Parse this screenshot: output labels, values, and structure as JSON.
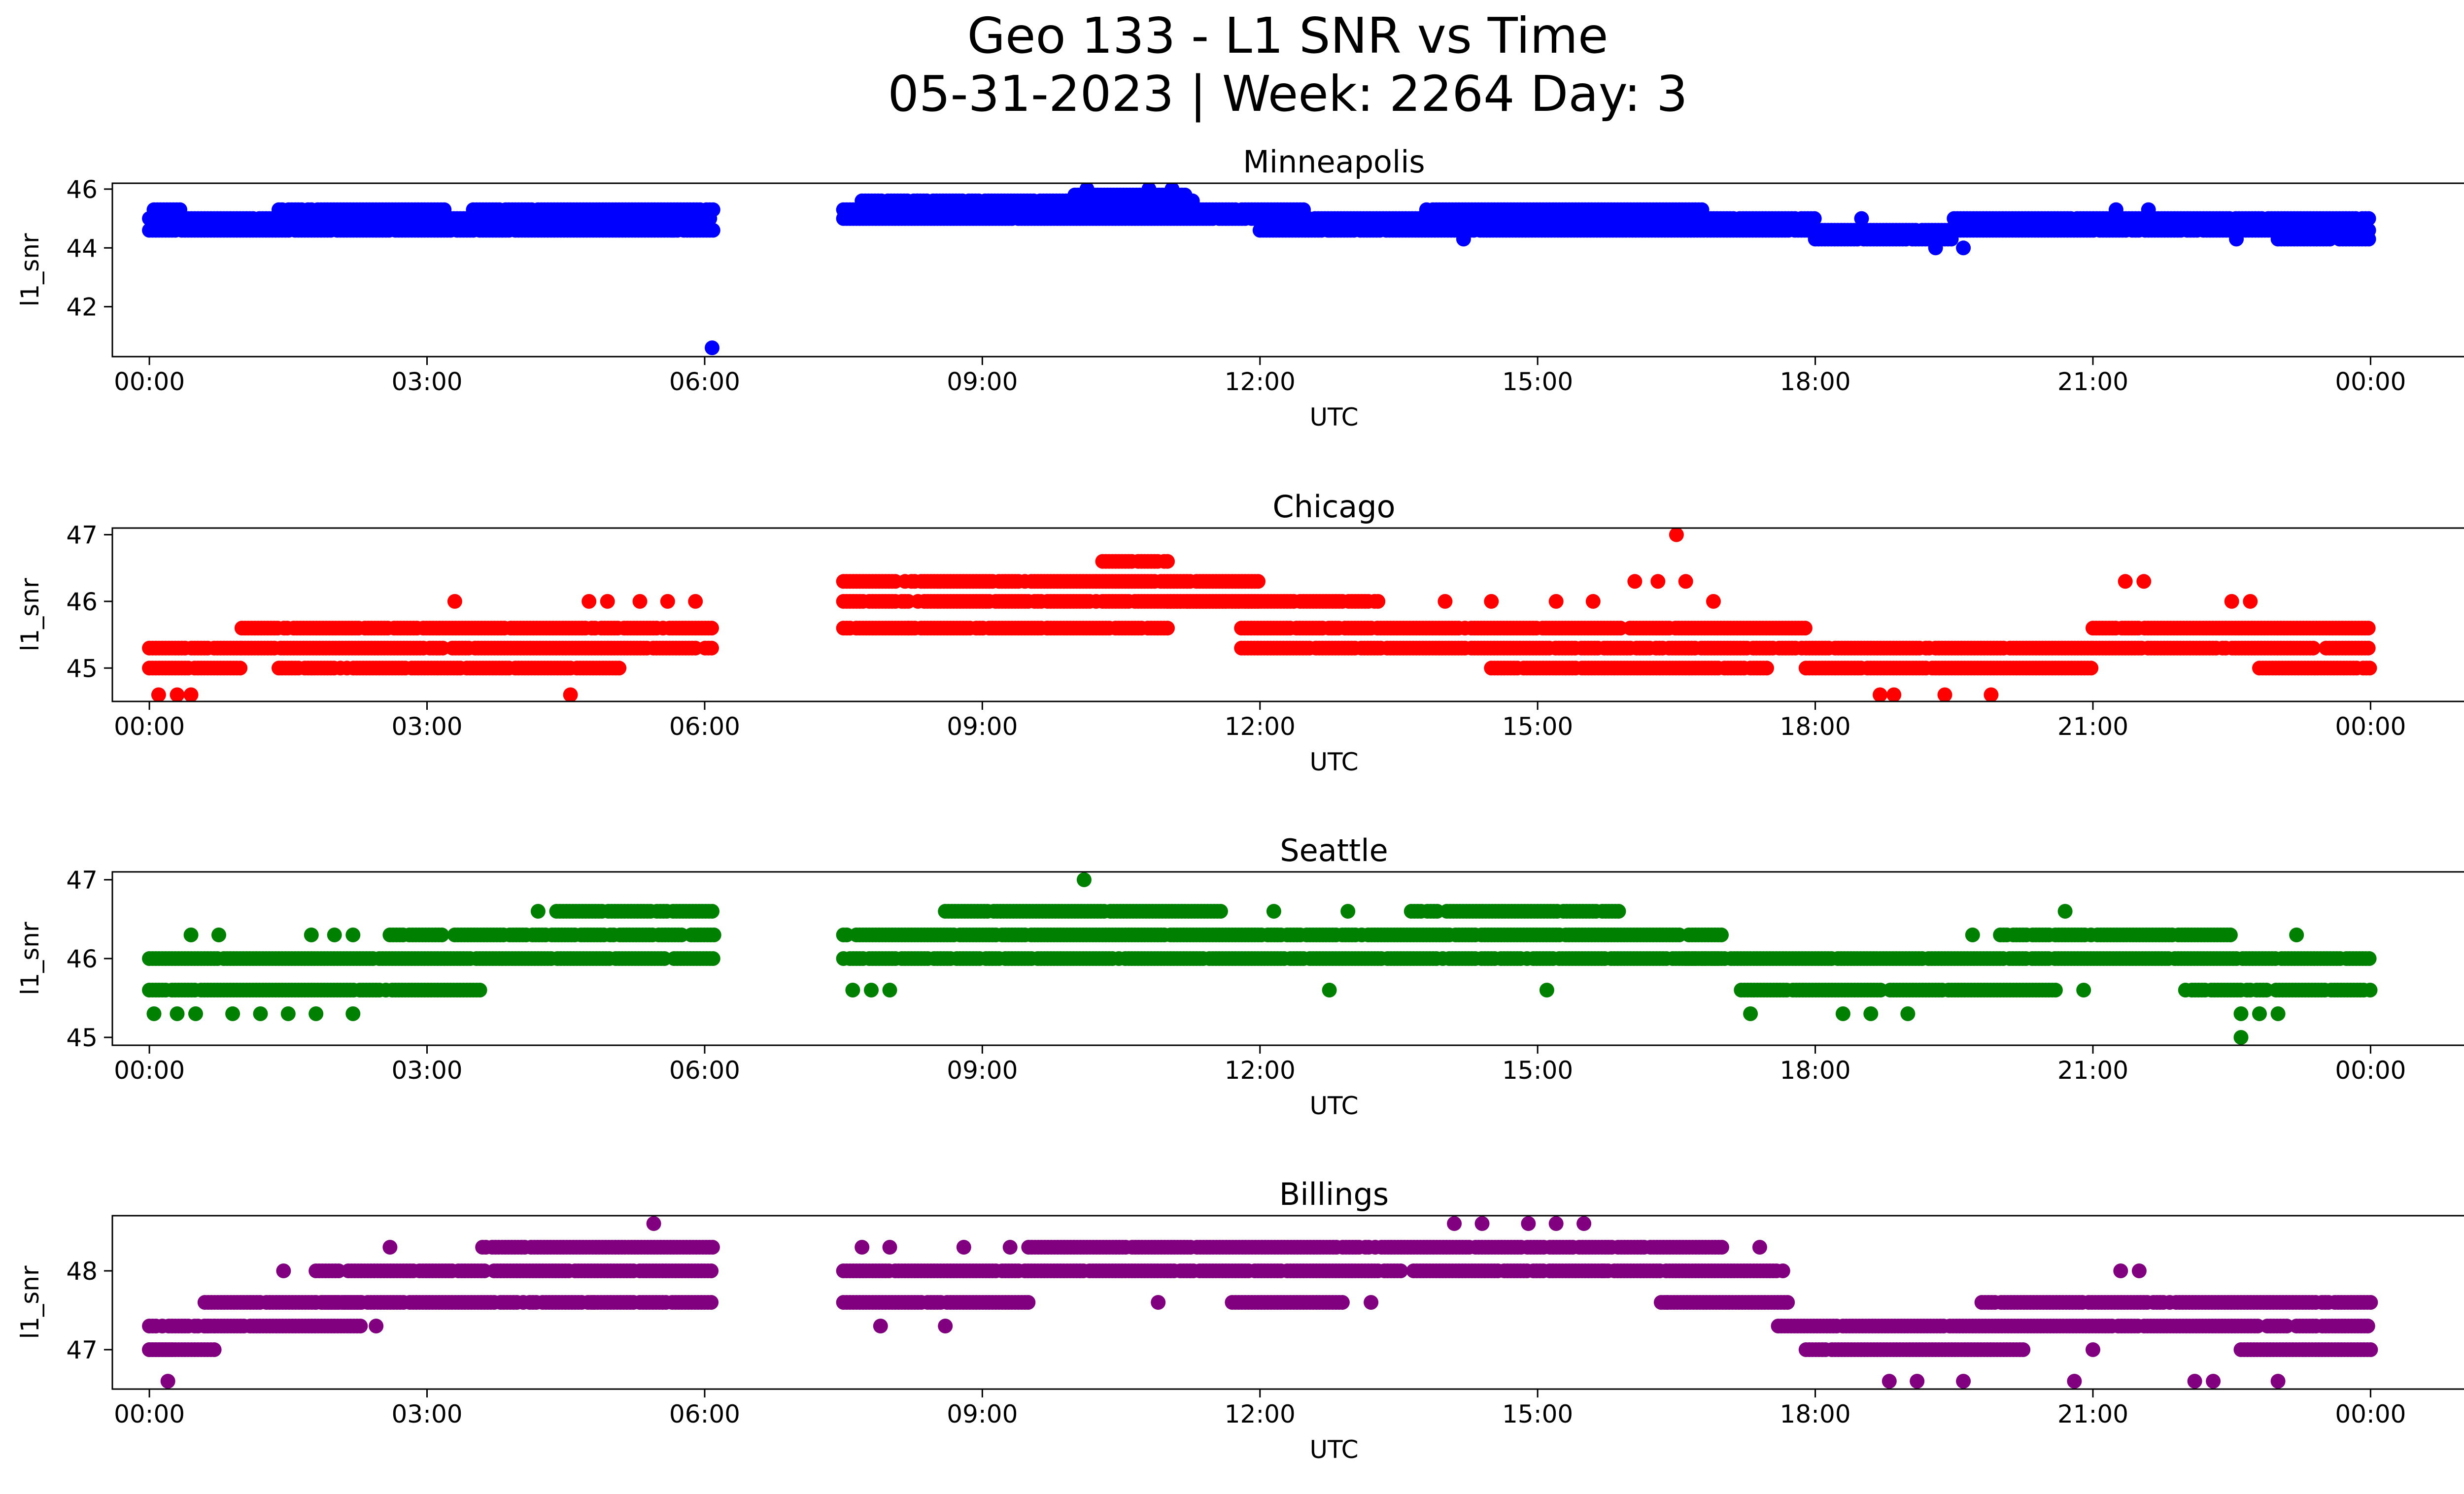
{
  "figure": {
    "title_line1": "Geo 133 - L1 SNR vs Time",
    "title_line2": "05-31-2023 | Week: 2264 Day: 3"
  },
  "chart_data": [
    {
      "type": "scatter",
      "title": "Minneapolis",
      "xlabel": "UTC",
      "ylabel": "l1_snr",
      "color": "#0000ff",
      "xlim_hours": [
        -0.4,
        26
      ],
      "ylim": [
        40.3,
        46.2
      ],
      "yticks": [
        42,
        44,
        46
      ],
      "xtick_labels": [
        "00:00",
        "03:00",
        "06:00",
        "09:00",
        "12:00",
        "15:00",
        "18:00",
        "21:00",
        "00:00"
      ],
      "grid": false,
      "legend": "none",
      "segments": [
        {
          "x_start": 0.0,
          "x_end": 6.1,
          "values": [
            44.6,
            45.0
          ]
        },
        {
          "x_start": 0.05,
          "x_end": 0.35,
          "values": [
            45.3
          ]
        },
        {
          "x_start": 1.4,
          "x_end": 3.2,
          "values": [
            45.3
          ]
        },
        {
          "x_start": 3.5,
          "x_end": 6.1,
          "values": [
            45.3
          ]
        },
        {
          "x_start": 7.5,
          "x_end": 12.5,
          "values": [
            45.0,
            45.3
          ]
        },
        {
          "x_start": 7.7,
          "x_end": 11.3,
          "values": [
            45.6
          ]
        },
        {
          "x_start": 10.0,
          "x_end": 11.2,
          "values": [
            45.8
          ]
        },
        {
          "x_start": 12.0,
          "x_end": 16.8,
          "values": [
            44.6,
            45.0
          ]
        },
        {
          "x_start": 13.8,
          "x_end": 16.8,
          "values": [
            45.3
          ]
        },
        {
          "x_start": 16.8,
          "x_end": 18.0,
          "values": [
            44.6,
            45.0
          ]
        },
        {
          "x_start": 18.0,
          "x_end": 19.5,
          "values": [
            44.3,
            44.6
          ]
        },
        {
          "x_start": 19.5,
          "x_end": 24.0,
          "values": [
            44.6,
            45.0
          ]
        },
        {
          "x_start": 23.0,
          "x_end": 24.0,
          "values": [
            44.3
          ]
        }
      ],
      "points": [
        {
          "x": 6.08,
          "y": 40.6
        },
        {
          "x": 5.65,
          "y": 44.6
        },
        {
          "x": 10.13,
          "y": 46.0
        },
        {
          "x": 10.8,
          "y": 46.0
        },
        {
          "x": 11.05,
          "y": 46.0
        },
        {
          "x": 12.75,
          "y": 44.6
        },
        {
          "x": 14.2,
          "y": 44.3
        },
        {
          "x": 19.3,
          "y": 44.0
        },
        {
          "x": 19.6,
          "y": 44.0
        },
        {
          "x": 22.55,
          "y": 44.3
        },
        {
          "x": 8.3,
          "y": 45.6
        },
        {
          "x": 18.5,
          "y": 45.0
        },
        {
          "x": 21.25,
          "y": 45.3
        },
        {
          "x": 21.6,
          "y": 45.3
        }
      ]
    },
    {
      "type": "scatter",
      "title": "Chicago",
      "xlabel": "UTC",
      "ylabel": "l1_snr",
      "color": "#ff0000",
      "xlim_hours": [
        -0.4,
        26
      ],
      "ylim": [
        44.5,
        47.1
      ],
      "yticks": [
        45,
        46,
        47
      ],
      "xtick_labels": [
        "00:00",
        "03:00",
        "06:00",
        "09:00",
        "12:00",
        "15:00",
        "18:00",
        "21:00",
        "00:00"
      ],
      "grid": false,
      "legend": "none",
      "segments": [
        {
          "x_start": 0.0,
          "x_end": 1.0,
          "values": [
            45.0,
            45.3
          ]
        },
        {
          "x_start": 1.0,
          "x_end": 6.1,
          "values": [
            45.3,
            45.6
          ]
        },
        {
          "x_start": 1.4,
          "x_end": 5.1,
          "values": [
            45.0
          ]
        },
        {
          "x_start": 7.5,
          "x_end": 12.0,
          "values": [
            46.0,
            46.3
          ]
        },
        {
          "x_start": 7.5,
          "x_end": 11.0,
          "values": [
            45.6
          ]
        },
        {
          "x_start": 10.3,
          "x_end": 11.0,
          "values": [
            46.6
          ]
        },
        {
          "x_start": 11.0,
          "x_end": 13.3,
          "values": [
            46.0
          ]
        },
        {
          "x_start": 11.8,
          "x_end": 17.9,
          "values": [
            45.3,
            45.6
          ]
        },
        {
          "x_start": 14.5,
          "x_end": 17.5,
          "values": [
            45.0
          ]
        },
        {
          "x_start": 17.9,
          "x_end": 21.0,
          "values": [
            45.0,
            45.3
          ]
        },
        {
          "x_start": 21.0,
          "x_end": 24.0,
          "values": [
            45.3,
            45.6
          ]
        },
        {
          "x_start": 22.8,
          "x_end": 24.0,
          "values": [
            45.0
          ]
        }
      ],
      "points": [
        {
          "x": 0.1,
          "y": 44.6
        },
        {
          "x": 0.3,
          "y": 44.6
        },
        {
          "x": 0.45,
          "y": 44.6
        },
        {
          "x": 3.3,
          "y": 46.0
        },
        {
          "x": 4.55,
          "y": 44.6
        },
        {
          "x": 4.75,
          "y": 46.0
        },
        {
          "x": 4.95,
          "y": 46.0
        },
        {
          "x": 5.3,
          "y": 46.0
        },
        {
          "x": 5.6,
          "y": 46.0
        },
        {
          "x": 5.9,
          "y": 46.0
        },
        {
          "x": 16.5,
          "y": 47.0
        },
        {
          "x": 16.3,
          "y": 46.3
        },
        {
          "x": 16.6,
          "y": 46.3
        },
        {
          "x": 16.05,
          "y": 46.3
        },
        {
          "x": 15.2,
          "y": 46.0
        },
        {
          "x": 15.6,
          "y": 46.0
        },
        {
          "x": 16.9,
          "y": 46.0
        },
        {
          "x": 18.7,
          "y": 44.6
        },
        {
          "x": 18.85,
          "y": 44.6
        },
        {
          "x": 19.4,
          "y": 44.6
        },
        {
          "x": 19.9,
          "y": 44.6
        },
        {
          "x": 21.35,
          "y": 46.3
        },
        {
          "x": 21.55,
          "y": 46.3
        },
        {
          "x": 22.5,
          "y": 46.0
        },
        {
          "x": 22.7,
          "y": 46.0
        },
        {
          "x": 14.0,
          "y": 46.0
        },
        {
          "x": 14.5,
          "y": 46.0
        },
        {
          "x": 9.7,
          "y": 45.6
        },
        {
          "x": 8.2,
          "y": 45.6
        }
      ]
    },
    {
      "type": "scatter",
      "title": "Seattle",
      "xlabel": "UTC",
      "ylabel": "l1_snr",
      "color": "#008000",
      "xlim_hours": [
        -0.4,
        26
      ],
      "ylim": [
        44.9,
        47.1
      ],
      "yticks": [
        45,
        46,
        47
      ],
      "xtick_labels": [
        "00:00",
        "03:00",
        "06:00",
        "09:00",
        "12:00",
        "15:00",
        "18:00",
        "21:00",
        "00:00"
      ],
      "grid": false,
      "legend": "none",
      "segments": [
        {
          "x_start": 0.0,
          "x_end": 3.6,
          "values": [
            45.6
          ]
        },
        {
          "x_start": 0.0,
          "x_end": 6.1,
          "values": [
            46.0
          ]
        },
        {
          "x_start": 2.6,
          "x_end": 6.1,
          "values": [
            46.3
          ]
        },
        {
          "x_start": 4.4,
          "x_end": 6.1,
          "values": [
            46.6
          ]
        },
        {
          "x_start": 7.5,
          "x_end": 17.0,
          "values": [
            46.0,
            46.3
          ]
        },
        {
          "x_start": 8.6,
          "x_end": 11.6,
          "values": [
            46.6
          ]
        },
        {
          "x_start": 13.6,
          "x_end": 15.9,
          "values": [
            46.6
          ]
        },
        {
          "x_start": 16.6,
          "x_end": 24.0,
          "values": [
            46.0
          ]
        },
        {
          "x_start": 17.2,
          "x_end": 20.6,
          "values": [
            45.6
          ]
        },
        {
          "x_start": 20.0,
          "x_end": 22.5,
          "values": [
            46.3
          ]
        },
        {
          "x_start": 22.0,
          "x_end": 24.0,
          "values": [
            45.6
          ]
        }
      ],
      "points": [
        {
          "x": 0.05,
          "y": 45.3
        },
        {
          "x": 0.3,
          "y": 45.3
        },
        {
          "x": 0.5,
          "y": 45.3
        },
        {
          "x": 0.9,
          "y": 45.3
        },
        {
          "x": 1.2,
          "y": 45.3
        },
        {
          "x": 1.5,
          "y": 45.3
        },
        {
          "x": 1.8,
          "y": 45.3
        },
        {
          "x": 2.2,
          "y": 45.3
        },
        {
          "x": 0.45,
          "y": 46.3
        },
        {
          "x": 0.75,
          "y": 46.3
        },
        {
          "x": 1.75,
          "y": 46.3
        },
        {
          "x": 2.0,
          "y": 46.3
        },
        {
          "x": 2.2,
          "y": 46.3
        },
        {
          "x": 4.2,
          "y": 46.6
        },
        {
          "x": 10.1,
          "y": 47.0
        },
        {
          "x": 12.15,
          "y": 46.6
        },
        {
          "x": 12.95,
          "y": 46.6
        },
        {
          "x": 12.75,
          "y": 45.6
        },
        {
          "x": 15.1,
          "y": 45.6
        },
        {
          "x": 7.6,
          "y": 45.6
        },
        {
          "x": 7.8,
          "y": 45.6
        },
        {
          "x": 8.0,
          "y": 45.6
        },
        {
          "x": 17.3,
          "y": 45.3
        },
        {
          "x": 18.3,
          "y": 45.3
        },
        {
          "x": 18.6,
          "y": 45.3
        },
        {
          "x": 19.0,
          "y": 45.3
        },
        {
          "x": 19.7,
          "y": 46.3
        },
        {
          "x": 20.7,
          "y": 46.6
        },
        {
          "x": 22.6,
          "y": 45.3
        },
        {
          "x": 22.8,
          "y": 45.3
        },
        {
          "x": 23.0,
          "y": 45.3
        },
        {
          "x": 22.6,
          "y": 45.0
        },
        {
          "x": 23.2,
          "y": 46.3
        },
        {
          "x": 20.9,
          "y": 45.6
        }
      ]
    },
    {
      "type": "scatter",
      "title": "Billings",
      "xlabel": "UTC",
      "ylabel": "l1_snr",
      "color": "#800080",
      "xlim_hours": [
        -0.4,
        26
      ],
      "ylim": [
        46.5,
        48.7
      ],
      "yticks": [
        47,
        48
      ],
      "xtick_labels": [
        "00:00",
        "03:00",
        "06:00",
        "09:00",
        "12:00",
        "15:00",
        "18:00",
        "21:00",
        "00:00"
      ],
      "grid": false,
      "legend": "none",
      "segments": [
        {
          "x_start": 0.0,
          "x_end": 0.25,
          "values": [
            47.0
          ]
        },
        {
          "x_start": 0.0,
          "x_end": 0.7,
          "values": [
            47.0,
            47.3
          ]
        },
        {
          "x_start": 0.6,
          "x_end": 2.3,
          "values": [
            47.3,
            47.6
          ]
        },
        {
          "x_start": 1.8,
          "x_end": 6.1,
          "values": [
            47.6,
            48.0
          ]
        },
        {
          "x_start": 3.6,
          "x_end": 6.1,
          "values": [
            48.3
          ]
        },
        {
          "x_start": 7.5,
          "x_end": 17.7,
          "values": [
            48.0
          ]
        },
        {
          "x_start": 7.5,
          "x_end": 9.5,
          "values": [
            47.6
          ]
        },
        {
          "x_start": 9.5,
          "x_end": 17.0,
          "values": [
            48.3
          ]
        },
        {
          "x_start": 11.7,
          "x_end": 12.9,
          "values": [
            47.6
          ]
        },
        {
          "x_start": 16.3,
          "x_end": 17.7,
          "values": [
            47.6
          ]
        },
        {
          "x_start": 17.6,
          "x_end": 24.0,
          "values": [
            47.3
          ]
        },
        {
          "x_start": 17.9,
          "x_end": 20.3,
          "values": [
            47.0
          ]
        },
        {
          "x_start": 19.8,
          "x_end": 24.0,
          "values": [
            47.6
          ]
        },
        {
          "x_start": 22.6,
          "x_end": 24.0,
          "values": [
            47.0
          ]
        }
      ],
      "points": [
        {
          "x": 0.2,
          "y": 46.6
        },
        {
          "x": 1.45,
          "y": 48.0
        },
        {
          "x": 2.6,
          "y": 48.3
        },
        {
          "x": 2.45,
          "y": 47.3
        },
        {
          "x": 4.8,
          "y": 47.6
        },
        {
          "x": 5.45,
          "y": 48.6
        },
        {
          "x": 7.9,
          "y": 47.3
        },
        {
          "x": 8.6,
          "y": 47.3
        },
        {
          "x": 8.0,
          "y": 48.3
        },
        {
          "x": 7.7,
          "y": 48.3
        },
        {
          "x": 8.8,
          "y": 48.3
        },
        {
          "x": 9.3,
          "y": 48.3
        },
        {
          "x": 14.1,
          "y": 48.6
        },
        {
          "x": 14.4,
          "y": 48.6
        },
        {
          "x": 14.9,
          "y": 48.6
        },
        {
          "x": 15.2,
          "y": 48.6
        },
        {
          "x": 15.5,
          "y": 48.6
        },
        {
          "x": 17.4,
          "y": 48.3
        },
        {
          "x": 18.8,
          "y": 46.6
        },
        {
          "x": 19.1,
          "y": 46.6
        },
        {
          "x": 19.6,
          "y": 46.6
        },
        {
          "x": 20.8,
          "y": 46.6
        },
        {
          "x": 21.3,
          "y": 48.0
        },
        {
          "x": 21.5,
          "y": 48.0
        },
        {
          "x": 22.1,
          "y": 46.6
        },
        {
          "x": 22.3,
          "y": 46.6
        },
        {
          "x": 23.0,
          "y": 46.6
        },
        {
          "x": 13.2,
          "y": 47.6
        },
        {
          "x": 10.9,
          "y": 47.6
        },
        {
          "x": 15.7,
          "y": 48.0
        },
        {
          "x": 16.4,
          "y": 47.6
        },
        {
          "x": 21.0,
          "y": 47.0
        }
      ]
    }
  ]
}
